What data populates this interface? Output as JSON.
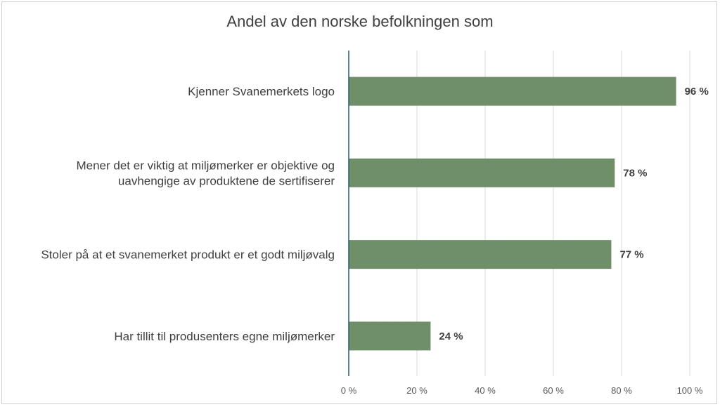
{
  "chart_data": {
    "type": "bar",
    "orientation": "horizontal",
    "title": "Andel av den norske befolkningen som",
    "categories": [
      [
        "Kjenner Svanemerkets logo"
      ],
      [
        "Mener det er viktig at miljømerker er objektive og",
        "uavhengige av produktene de sertifiserer"
      ],
      [
        "Stoler på at et svanemerket produkt er et godt miljøvalg"
      ],
      [
        "Har tillit til produsenters egne miljømerker"
      ]
    ],
    "values": [
      96,
      78,
      77,
      24
    ],
    "data_labels": [
      "96 %",
      "78 %",
      "77 %",
      "24 %"
    ],
    "xlim": [
      0,
      100
    ],
    "xticks": [
      0,
      20,
      40,
      60,
      80,
      100
    ],
    "xtick_labels": [
      "0 %",
      "20 %",
      "40 %",
      "60 %",
      "80 %",
      "100 %"
    ],
    "grid": true,
    "bar_color": "#6e8f68",
    "axis_color": "#1f5f7a",
    "grid_color": "#d9d9d9"
  }
}
